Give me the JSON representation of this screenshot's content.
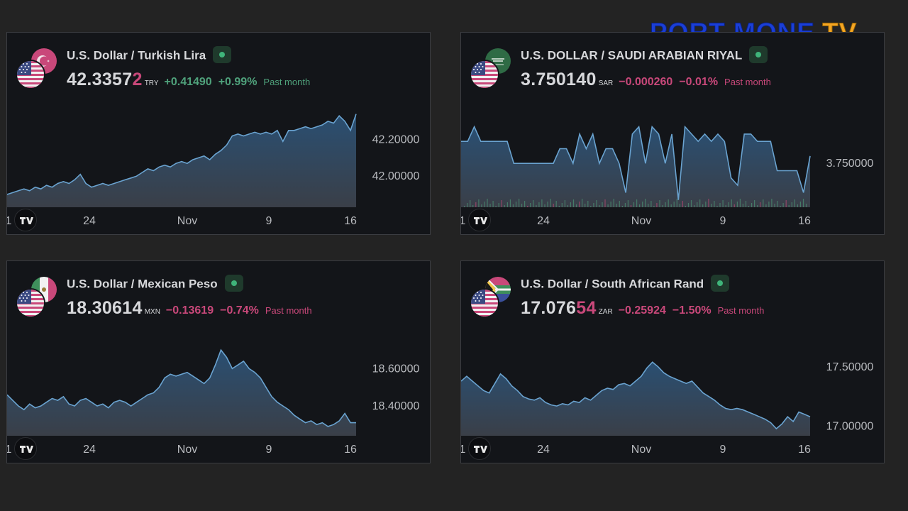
{
  "brand": {
    "text_left": "PORT-MONE",
    "text_right": "TV"
  },
  "colors": {
    "up": "#4fa17b",
    "down": "#c9487a",
    "line": "#6aa3d0",
    "fill_top": "#2a4f72",
    "fill_bottom": "#3a3f48"
  },
  "cards": [
    {
      "pair_title": "U.S. Dollar / Turkish Lira",
      "price_main": "42.3357",
      "price_highlight": "2",
      "currency_code": "TRY",
      "change_abs": "+0.41490",
      "change_pct": "+0.99%",
      "period": "Past month",
      "direction": "up",
      "quote_flag": "turkey-flag-icon",
      "base_flag": "usa-flag-icon"
    },
    {
      "pair_title": "U.S. DOLLAR / SAUDI ARABIAN RIYAL",
      "price_main": "3.750140",
      "price_highlight": "",
      "currency_code": "SAR",
      "change_abs": "−0.000260",
      "change_pct": "−0.01%",
      "period": "Past month",
      "direction": "down",
      "quote_flag": "saudi-flag-icon",
      "base_flag": "usa-flag-icon"
    },
    {
      "pair_title": "U.S. Dollar / Mexican Peso",
      "price_main": "18.30614",
      "price_highlight": "",
      "currency_code": "MXN",
      "change_abs": "−0.13619",
      "change_pct": "−0.74%",
      "period": "Past month",
      "direction": "down",
      "quote_flag": "mexico-flag-icon",
      "base_flag": "usa-flag-icon"
    },
    {
      "pair_title": "U.S. Dollar / South African Rand",
      "price_main": "17.076",
      "price_highlight": "54",
      "currency_code": "ZAR",
      "change_abs": "−0.25924",
      "change_pct": "−1.50%",
      "period": "Past month",
      "direction": "down",
      "quote_flag": "south-africa-flag-icon",
      "base_flag": "usa-flag-icon"
    }
  ],
  "chart_data": [
    {
      "type": "area",
      "x_ticks": [
        "1",
        "24",
        "Nov",
        "9",
        "16"
      ],
      "y_ticks": [
        "42.20000",
        "42.00000"
      ],
      "y_tick_values": [
        42.2,
        42.0
      ],
      "ylim": [
        41.83,
        42.35
      ],
      "series": [
        {
          "values": [
            41.9,
            41.91,
            41.92,
            41.93,
            41.92,
            41.94,
            41.93,
            41.95,
            41.94,
            41.96,
            41.97,
            41.96,
            41.98,
            42.01,
            41.96,
            41.94,
            41.95,
            41.96,
            41.95,
            41.96,
            41.97,
            41.98,
            41.99,
            42.0,
            42.02,
            42.04,
            42.03,
            42.05,
            42.06,
            42.05,
            42.07,
            42.08,
            42.07,
            42.09,
            42.1,
            42.11,
            42.09,
            42.12,
            42.14,
            42.17,
            42.22,
            42.23,
            42.22,
            42.23,
            42.24,
            42.23,
            42.24,
            42.23,
            42.25,
            42.19,
            42.25,
            42.25,
            42.26,
            42.27,
            42.26,
            42.27,
            42.28,
            42.3,
            42.29,
            42.33,
            42.3,
            42.25,
            42.34
          ]
        }
      ],
      "grid": false,
      "legend": "none"
    },
    {
      "type": "area",
      "x_ticks": [
        "1",
        "24",
        "Nov",
        "9",
        "16"
      ],
      "y_ticks": [
        "3.750000"
      ],
      "y_tick_values": [
        3.75
      ],
      "ylim": [
        3.7494,
        3.7507
      ],
      "series": [
        {
          "values": [
            3.7503,
            3.7503,
            3.7505,
            3.7503,
            3.7503,
            3.7503,
            3.7503,
            3.7503,
            3.75,
            3.75,
            3.75,
            3.75,
            3.75,
            3.75,
            3.75,
            3.7502,
            3.7502,
            3.75,
            3.7504,
            3.7502,
            3.7504,
            3.75,
            3.7502,
            3.7502,
            3.75,
            3.7496,
            3.7504,
            3.7505,
            3.75,
            3.7505,
            3.7504,
            3.75,
            3.7504,
            3.7495,
            3.7505,
            3.7504,
            3.7503,
            3.7504,
            3.7503,
            3.7504,
            3.7503,
            3.7498,
            3.7497,
            3.7504,
            3.7504,
            3.7503,
            3.7503,
            3.7503,
            3.7499,
            3.7499,
            3.7499,
            3.7499,
            3.7496,
            3.7501
          ]
        }
      ],
      "grid": false,
      "legend": "none"
    },
    {
      "type": "area",
      "x_ticks": [
        "1",
        "24",
        "Nov",
        "9",
        "16"
      ],
      "y_ticks": [
        "18.60000",
        "18.40000"
      ],
      "y_tick_values": [
        18.6,
        18.4
      ],
      "ylim": [
        18.24,
        18.75
      ],
      "series": [
        {
          "values": [
            18.46,
            18.43,
            18.4,
            18.38,
            18.41,
            18.39,
            18.4,
            18.42,
            18.44,
            18.43,
            18.45,
            18.41,
            18.4,
            18.43,
            18.44,
            18.42,
            18.4,
            18.41,
            18.39,
            18.42,
            18.43,
            18.42,
            18.4,
            18.42,
            18.44,
            18.46,
            18.47,
            18.5,
            18.55,
            18.57,
            18.56,
            18.57,
            18.58,
            18.56,
            18.54,
            18.52,
            18.55,
            18.62,
            18.7,
            18.66,
            18.6,
            18.62,
            18.64,
            18.6,
            18.58,
            18.55,
            18.5,
            18.45,
            18.42,
            18.4,
            18.38,
            18.35,
            18.33,
            18.31,
            18.32,
            18.3,
            18.31,
            18.29,
            18.3,
            18.32,
            18.36,
            18.31,
            18.31
          ]
        }
      ],
      "grid": false,
      "legend": "none"
    },
    {
      "type": "area",
      "x_ticks": [
        "1",
        "24",
        "Nov",
        "9",
        "16"
      ],
      "y_ticks": [
        "17.50000",
        "17.00000"
      ],
      "y_tick_values": [
        17.5,
        17.0
      ],
      "ylim": [
        16.92,
        17.72
      ],
      "series": [
        {
          "values": [
            17.38,
            17.42,
            17.38,
            17.34,
            17.3,
            17.28,
            17.36,
            17.44,
            17.4,
            17.34,
            17.3,
            17.25,
            17.23,
            17.22,
            17.24,
            17.2,
            17.18,
            17.17,
            17.19,
            17.18,
            17.21,
            17.2,
            17.24,
            17.22,
            17.26,
            17.3,
            17.32,
            17.31,
            17.35,
            17.36,
            17.34,
            17.38,
            17.42,
            17.49,
            17.54,
            17.5,
            17.45,
            17.42,
            17.4,
            17.38,
            17.36,
            17.38,
            17.33,
            17.28,
            17.25,
            17.22,
            17.18,
            17.15,
            17.14,
            17.15,
            17.14,
            17.12,
            17.1,
            17.08,
            17.06,
            17.03,
            16.98,
            17.02,
            17.08,
            17.04,
            17.12,
            17.1,
            17.08
          ]
        }
      ],
      "grid": false,
      "legend": "none"
    }
  ]
}
